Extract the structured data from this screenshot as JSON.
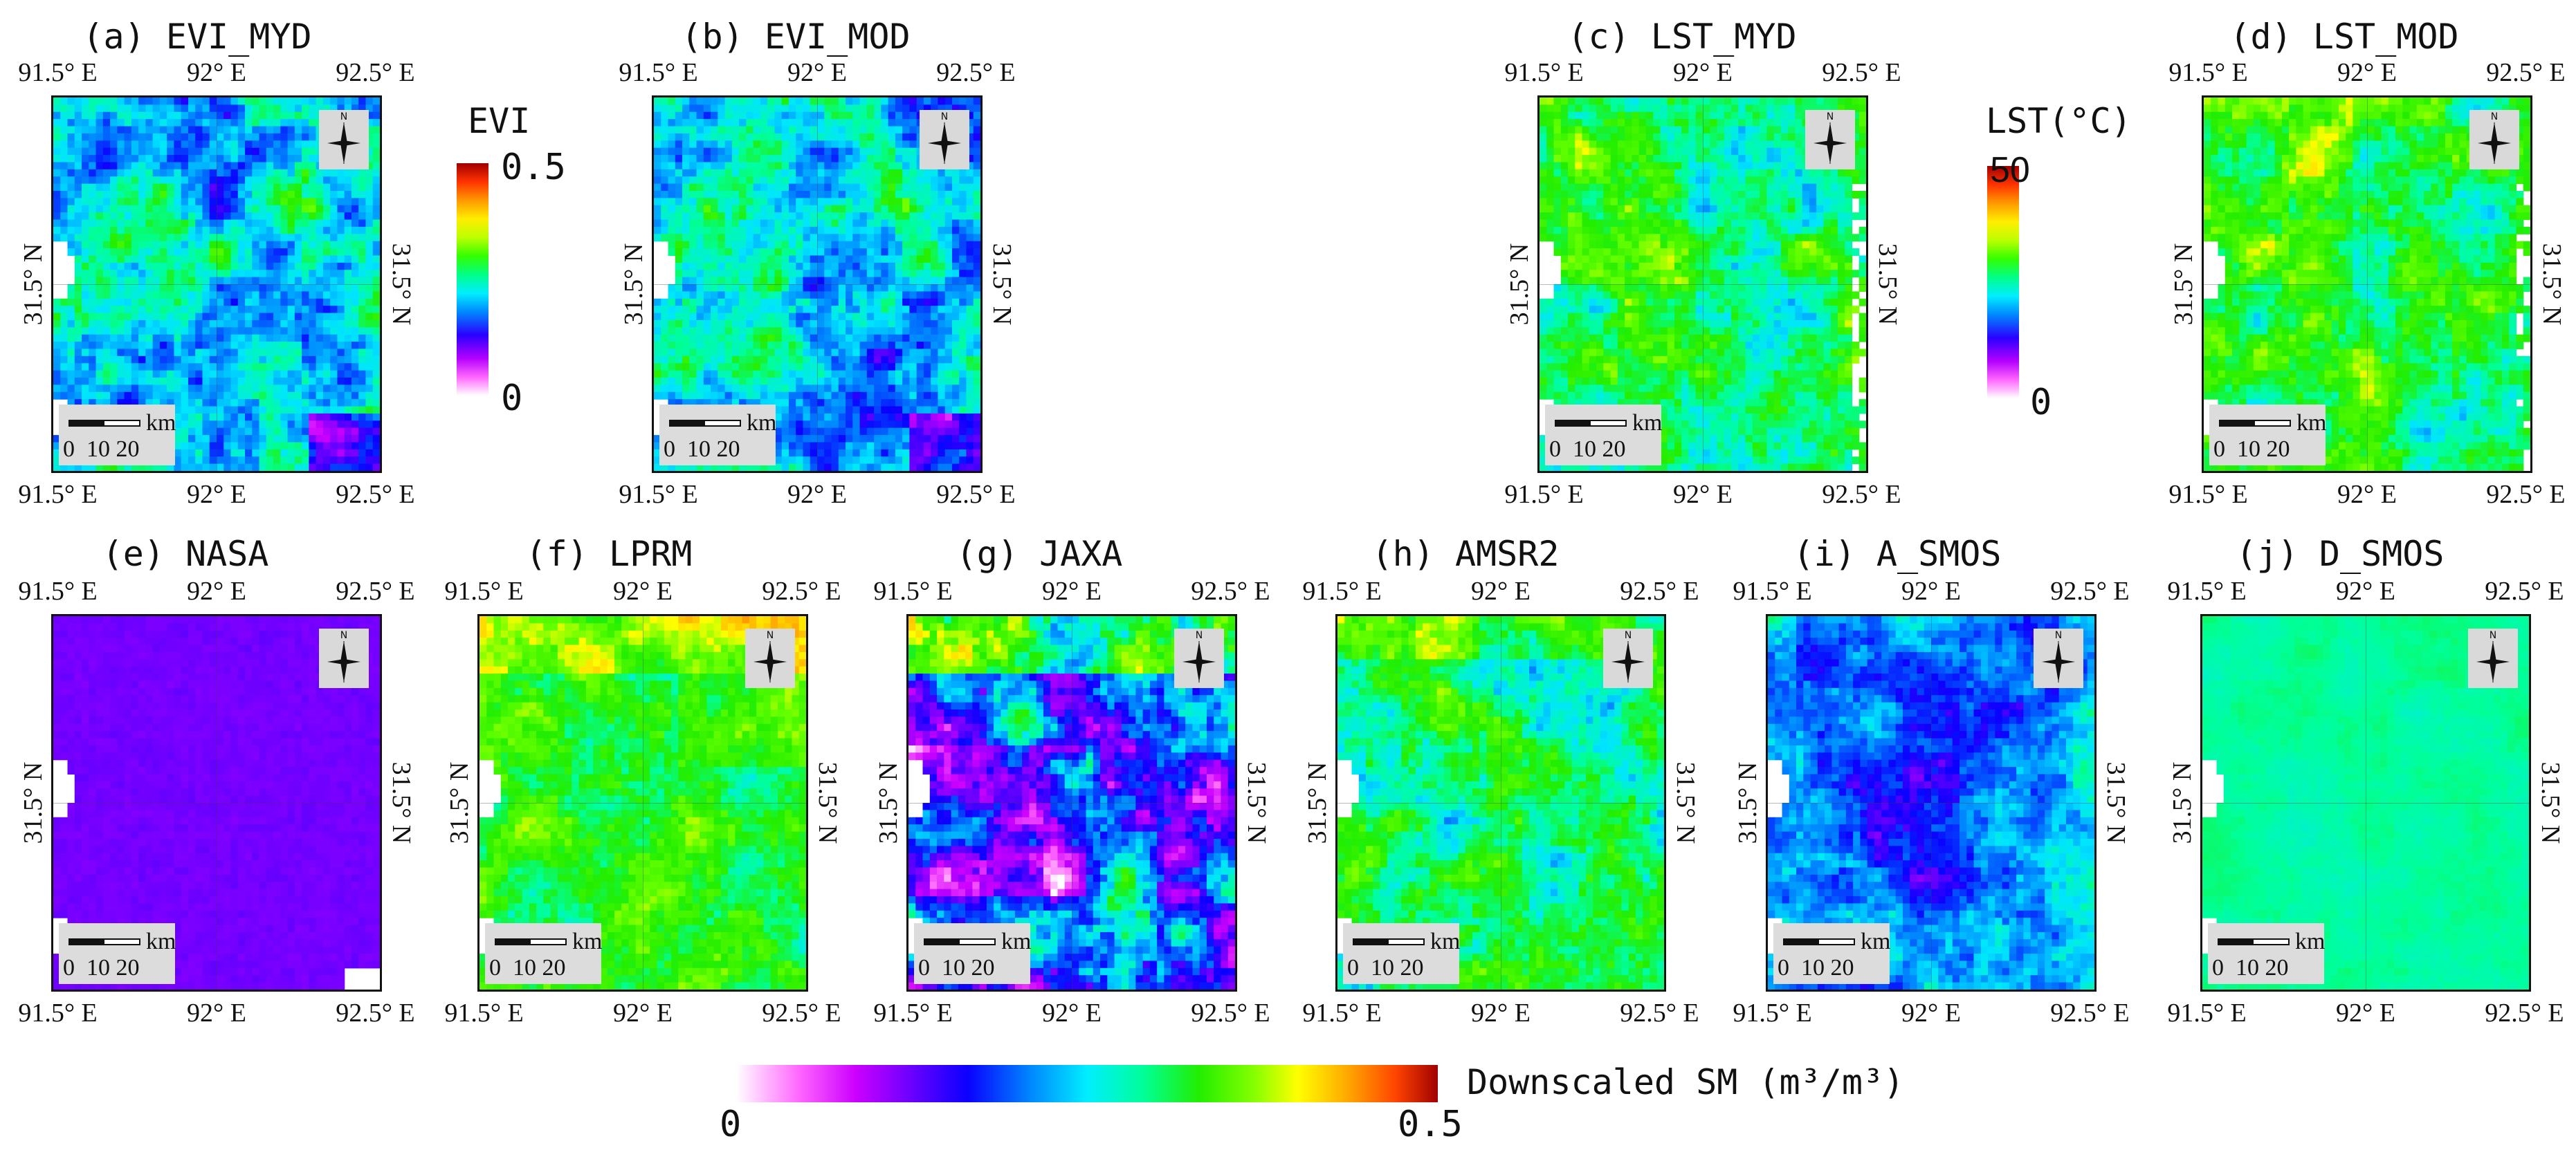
{
  "figure": {
    "panels_top": [
      {
        "id": "a",
        "title": "(a) EVI_MYD",
        "kind": "evi"
      },
      {
        "id": "b",
        "title": "(b) EVI_MOD",
        "kind": "evi"
      },
      {
        "id": "c",
        "title": "(c) LST_MYD",
        "kind": "lst"
      },
      {
        "id": "d",
        "title": "(d) LST_MOD",
        "kind": "lst"
      }
    ],
    "panels_bottom": [
      {
        "id": "e",
        "title": "(e) NASA",
        "kind": "nasa"
      },
      {
        "id": "f",
        "title": "(f) LPRM",
        "kind": "lprm"
      },
      {
        "id": "g",
        "title": "(g) JAXA",
        "kind": "jaxa"
      },
      {
        "id": "h",
        "title": "(h) AMSR2",
        "kind": "amsr2"
      },
      {
        "id": "i",
        "title": "(i) A_SMOS",
        "kind": "asmos"
      },
      {
        "id": "j",
        "title": "(j) D_SMOS",
        "kind": "dsmos"
      }
    ],
    "axis": {
      "lon_ticks": [
        "91.5° E",
        "92° E",
        "92.5° E"
      ],
      "lat_tick": "31.5° N"
    },
    "north_arrow": {
      "letter": "N",
      "icon": "north-arrow-icon"
    },
    "scale_bar": {
      "unit": "km",
      "labels": "0  10 20"
    },
    "colorbars": {
      "evi": {
        "label": "EVI",
        "max": "0.5",
        "min": "0"
      },
      "lst": {
        "label": "LST(°C)",
        "max": "50",
        "min": "0"
      },
      "sm": {
        "label": "Downscaled SM (m³/m³)",
        "min": "0",
        "max": "0.5"
      }
    },
    "colors": {
      "rainbow": [
        "#ffffff",
        "#ff66ff",
        "#cc00ff",
        "#7a00ff",
        "#0a00ff",
        "#0077ff",
        "#00e5ff",
        "#00ff99",
        "#22ee00",
        "#66ff00",
        "#ffff00",
        "#ffb000",
        "#ff5a00",
        "#b00000"
      ]
    }
  }
}
